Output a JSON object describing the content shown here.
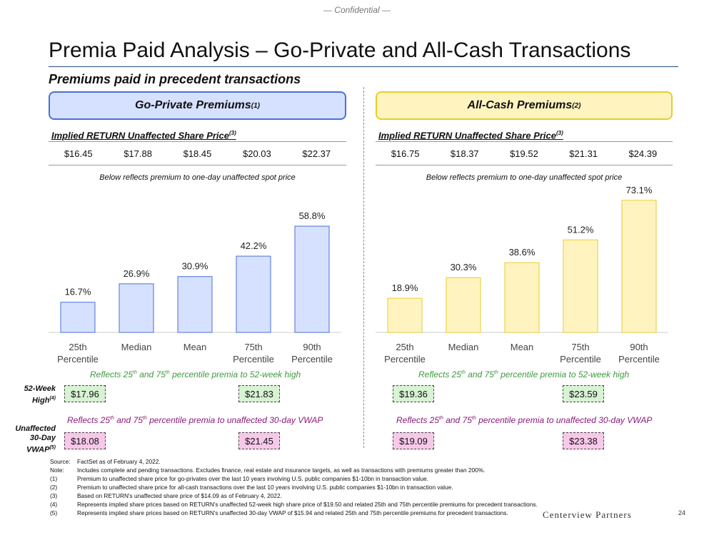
{
  "header": {
    "confidential": "— Confidential —"
  },
  "title": "Premia Paid Analysis – Go-Private and All-Cash Transactions",
  "subtitle": "Premiums paid in precedent transactions",
  "go_private": {
    "banner": "Go-Private Premiums",
    "banner_note": "(1)",
    "implied_label": "Implied RETURN Unaffected Share Price",
    "implied_note": "(3)",
    "prices": [
      "$16.45",
      "$17.88",
      "$18.45",
      "$20.03",
      "$22.37"
    ],
    "below_text": "Below reflects premium to one-day unaffected spot price",
    "reflect_52wk": [
      "Reflects 25",
      "th",
      " and 75",
      "th",
      " percentile premia to 52-week high"
    ],
    "reflect_vwap": [
      "Reflects 25",
      "th",
      " and 75",
      "th",
      " percentile premia to unaffected 30-day VWAP"
    ],
    "box_52wk": [
      "$17.96",
      "$21.83"
    ],
    "box_vwap": [
      "$18.08",
      "$21.45"
    ]
  },
  "all_cash": {
    "banner": "All-Cash Premiums",
    "banner_note": "(2)",
    "implied_label": "Implied RETURN Unaffected Share Price",
    "implied_note": "(3)",
    "prices": [
      "$16.75",
      "$18.37",
      "$19.52",
      "$21.31",
      "$24.39"
    ],
    "below_text": "Below reflects premium to one-day unaffected spot price",
    "reflect_52wk": [
      "Reflects 25",
      "th",
      " and 75",
      "th",
      " percentile premia to 52-week high"
    ],
    "reflect_vwap": [
      "Reflects 25",
      "th",
      " and 75",
      "th",
      " percentile premia to unaffected 30-day VWAP"
    ],
    "box_52wk": [
      "$19.36",
      "$23.59"
    ],
    "box_vwap": [
      "$19.09",
      "$23.38"
    ]
  },
  "row_labels": {
    "week52": [
      "52-Week",
      "High",
      "(4)"
    ],
    "vwap": [
      "Unaffected",
      "30-Day",
      "VWAP",
      "(5)"
    ]
  },
  "chart_data": [
    {
      "type": "bar",
      "categories": [
        [
          "25th",
          "Percentile"
        ],
        [
          "Median"
        ],
        [
          "Mean"
        ],
        [
          "75th",
          "Percentile"
        ],
        [
          "90th",
          "Percentile"
        ]
      ],
      "values": [
        16.7,
        26.9,
        30.9,
        42.2,
        58.8
      ],
      "data_labels": [
        "16.7%",
        "26.9%",
        "30.9%",
        "42.2%",
        "58.8%"
      ],
      "bar_color": "#d6e1ff",
      "bar_stroke": "#4a6fd8",
      "ylim": [
        0,
        75
      ]
    },
    {
      "type": "bar",
      "categories": [
        [
          "25th",
          "Percentile"
        ],
        [
          "Median"
        ],
        [
          "Mean"
        ],
        [
          "75th",
          "Percentile"
        ],
        [
          "90th",
          "Percentile"
        ]
      ],
      "values": [
        18.9,
        30.3,
        38.6,
        51.2,
        73.1
      ],
      "data_labels": [
        "18.9%",
        "30.3%",
        "38.6%",
        "51.2%",
        "73.1%"
      ],
      "bar_color": "#fff4c0",
      "bar_stroke": "#e8cc2a",
      "ylim": [
        0,
        75
      ]
    }
  ],
  "footnotes": [
    {
      "key": "Source:",
      "text": "FactSet as of February 4, 2022."
    },
    {
      "key": "Note:",
      "text": "Includes complete and pending transactions. Excludes finance, real estate and insurance targets, as well as transactions with premiums greater than 200%."
    },
    {
      "key": "(1)",
      "text": "Premium to unaffected share price for go-privates over the last 10 years involving U.S. public companies $1-10bn in transaction value."
    },
    {
      "key": "(2)",
      "text": "Premium to unaffected share price for all-cash transactions over the last 10 years involving U.S. public companies $1-10bn in transaction value."
    },
    {
      "key": "(3)",
      "text": "Based on RETURN's unaffected share price of $14.09 as of February 4, 2022."
    },
    {
      "key": "(4)",
      "text": "Represents implied share prices based on RETURN's unaffected 52-week high share price of $19.50 and related 25th and 75th percentile premiums for precedent transactions."
    },
    {
      "key": "(5)",
      "text": "Represents implied share prices based on RETURN's unaffected 30-day VWAP of $15.94 and related 25th and 75th percentile premiums for precedent transactions."
    }
  ],
  "footer": {
    "logo": "Centerview Partners",
    "page": "24"
  }
}
